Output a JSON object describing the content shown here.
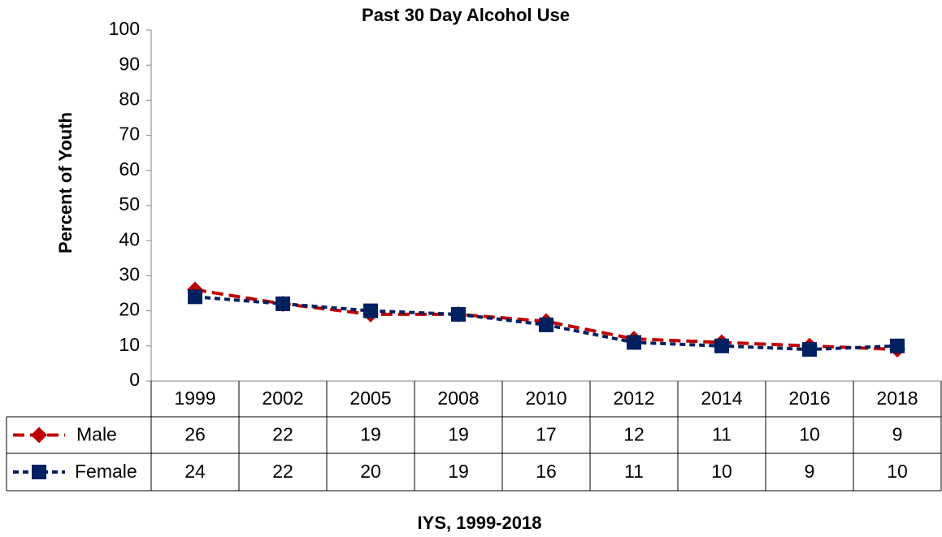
{
  "chart_data": {
    "type": "line",
    "title": "Past 30 Day Alcohol Use",
    "y_label": "Percent of Youth",
    "x_label": "IYS, 1999-2018",
    "categories": [
      "1999",
      "2002",
      "2005",
      "2008",
      "2010",
      "2012",
      "2014",
      "2016",
      "2018"
    ],
    "series": [
      {
        "name": "Male",
        "color": "#c00000",
        "marker": "diamond",
        "values": [
          26,
          22,
          19,
          19,
          17,
          12,
          11,
          10,
          9
        ]
      },
      {
        "name": "Female",
        "color": "#002060",
        "marker": "square",
        "values": [
          24,
          22,
          20,
          19,
          16,
          11,
          10,
          9,
          10
        ]
      }
    ],
    "ylim": [
      0,
      100
    ],
    "yticks": [
      0,
      10,
      20,
      30,
      40,
      50,
      60,
      70,
      80,
      90,
      100
    ],
    "grid": false,
    "data_table": true
  }
}
